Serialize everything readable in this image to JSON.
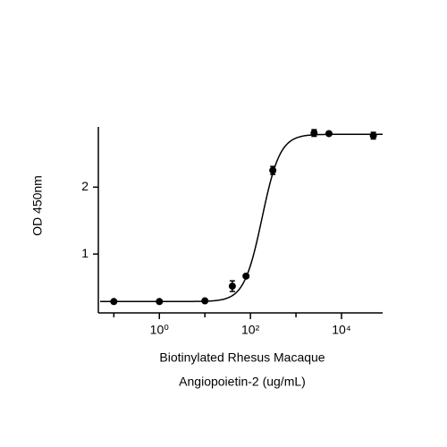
{
  "chart_data": {
    "type": "scatter",
    "x_label": [
      "Biotinylated Rhesus Macaque",
      "Angiopoietin-2 (ug/mL)"
    ],
    "y_label": "OD 450nm",
    "x_log": true,
    "xlim": [
      0.05,
      80000
    ],
    "ylim": [
      0.12,
      2.9
    ],
    "xticks": [
      {
        "value": 1,
        "label": "10⁰"
      },
      {
        "value": 100,
        "label": "10²"
      },
      {
        "value": 10000,
        "label": "10⁴"
      }
    ],
    "xminorticks": [
      0.1,
      10,
      1000
    ],
    "yticks": [
      1,
      2
    ],
    "series": [
      {
        "color": "#000000",
        "x": [
          0.1,
          1,
          10,
          40,
          80,
          310,
          2500,
          5300,
          50000
        ],
        "values": [
          0.29,
          0.29,
          0.3,
          0.52,
          0.67,
          2.25,
          2.81,
          2.8,
          2.77
        ],
        "errors": [
          0.02,
          0.02,
          0.02,
          0.08,
          0.02,
          0.06,
          0.05,
          0.02,
          0.05
        ]
      }
    ],
    "fit": {
      "bottom": 0.29,
      "top": 2.79,
      "ec50": 180,
      "hill": 2.2
    }
  }
}
